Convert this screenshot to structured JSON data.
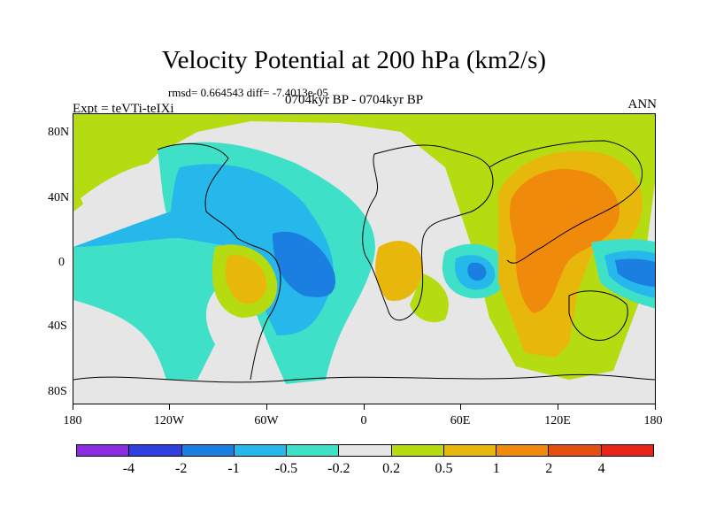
{
  "title": "Velocity Potential at 200 hPa (km2/s)",
  "stats_line": "rmsd= 0.664543 diff= -7.4013e-05",
  "experiment_label": "Expt = teVTi-teIXi",
  "period_label": "0704kyr BP - 0704kyr BP",
  "season_label": "ANN",
  "y_axis_ticks": [
    "80N",
    "40N",
    "0",
    "40S",
    "80S"
  ],
  "x_axis_ticks": [
    "180",
    "120W",
    "60W",
    "0",
    "60E",
    "120E",
    "180"
  ],
  "colorbar": {
    "colors": [
      "#8b2be2",
      "#2f3fe0",
      "#1a7fe0",
      "#26b8ea",
      "#3ee0c8",
      "#e6e6e6",
      "#b5dc10",
      "#e7b80b",
      "#f08a0b",
      "#e4500f",
      "#e82515"
    ],
    "labels": [
      "-4",
      "-2",
      "-1",
      "-0.5",
      "-0.2",
      "0.2",
      "0.5",
      "1",
      "2",
      "4"
    ]
  },
  "legend_colors": {
    "positive_weak": "#b5dc10",
    "positive_mid": "#e7b80b",
    "positive_strong": "#f08a0b",
    "negative_weak": "#3ee0c8",
    "negative_mid": "#26b8ea",
    "negative_strong": "#1a7fe0",
    "neutral": "#e6e6e6"
  }
}
